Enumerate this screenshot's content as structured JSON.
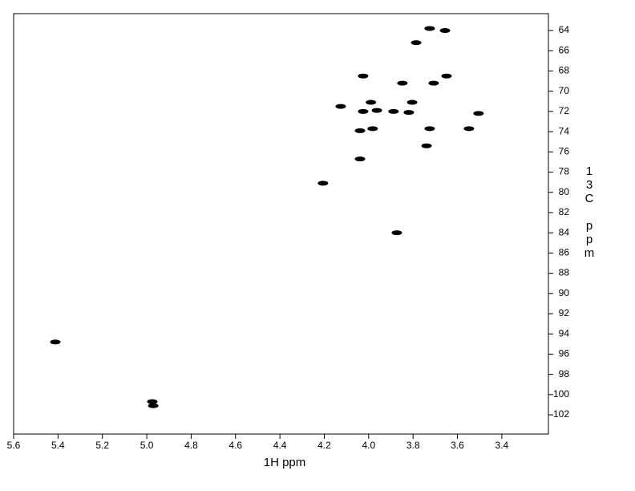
{
  "chart_data": {
    "type": "scatter",
    "x_label": "1H ppm",
    "y_label": "13C ppm",
    "xlim": [
      5.6,
      3.19
    ],
    "ylim": [
      62.33,
      103.9
    ],
    "xticks": [
      5.6,
      5.4,
      5.2,
      {
        "value": 5,
        "label": "5.0"
      },
      4.8,
      4.6,
      4.4,
      4.2,
      {
        "value": 4,
        "label": "4.0"
      },
      3.8,
      3.6,
      3.4
    ],
    "yticks": [
      64,
      66,
      68,
      70,
      72,
      74,
      76,
      78,
      80,
      82,
      84,
      86,
      88,
      90,
      92,
      94,
      96,
      98,
      100,
      102
    ],
    "color": "#000000",
    "x": [
      5.412,
      4.975,
      4.971,
      4.206,
      4.126,
      4.025,
      4.025,
      3.963,
      4.039,
      4.039,
      3.982,
      3.888,
      3.99,
      3.848,
      3.819,
      3.804,
      3.786,
      3.725,
      3.656,
      3.707,
      3.649,
      3.725,
      3.739,
      3.873,
      3.548,
      3.505
    ],
    "y": [
      94.8,
      100.7,
      101.1,
      79.1,
      71.5,
      68.5,
      72.0,
      71.9,
      76.7,
      73.9,
      73.7,
      72.0,
      71.1,
      69.2,
      72.1,
      71.1,
      65.2,
      63.8,
      64.0,
      69.2,
      68.5,
      73.7,
      75.4,
      84.0,
      73.7,
      72.2
    ]
  }
}
